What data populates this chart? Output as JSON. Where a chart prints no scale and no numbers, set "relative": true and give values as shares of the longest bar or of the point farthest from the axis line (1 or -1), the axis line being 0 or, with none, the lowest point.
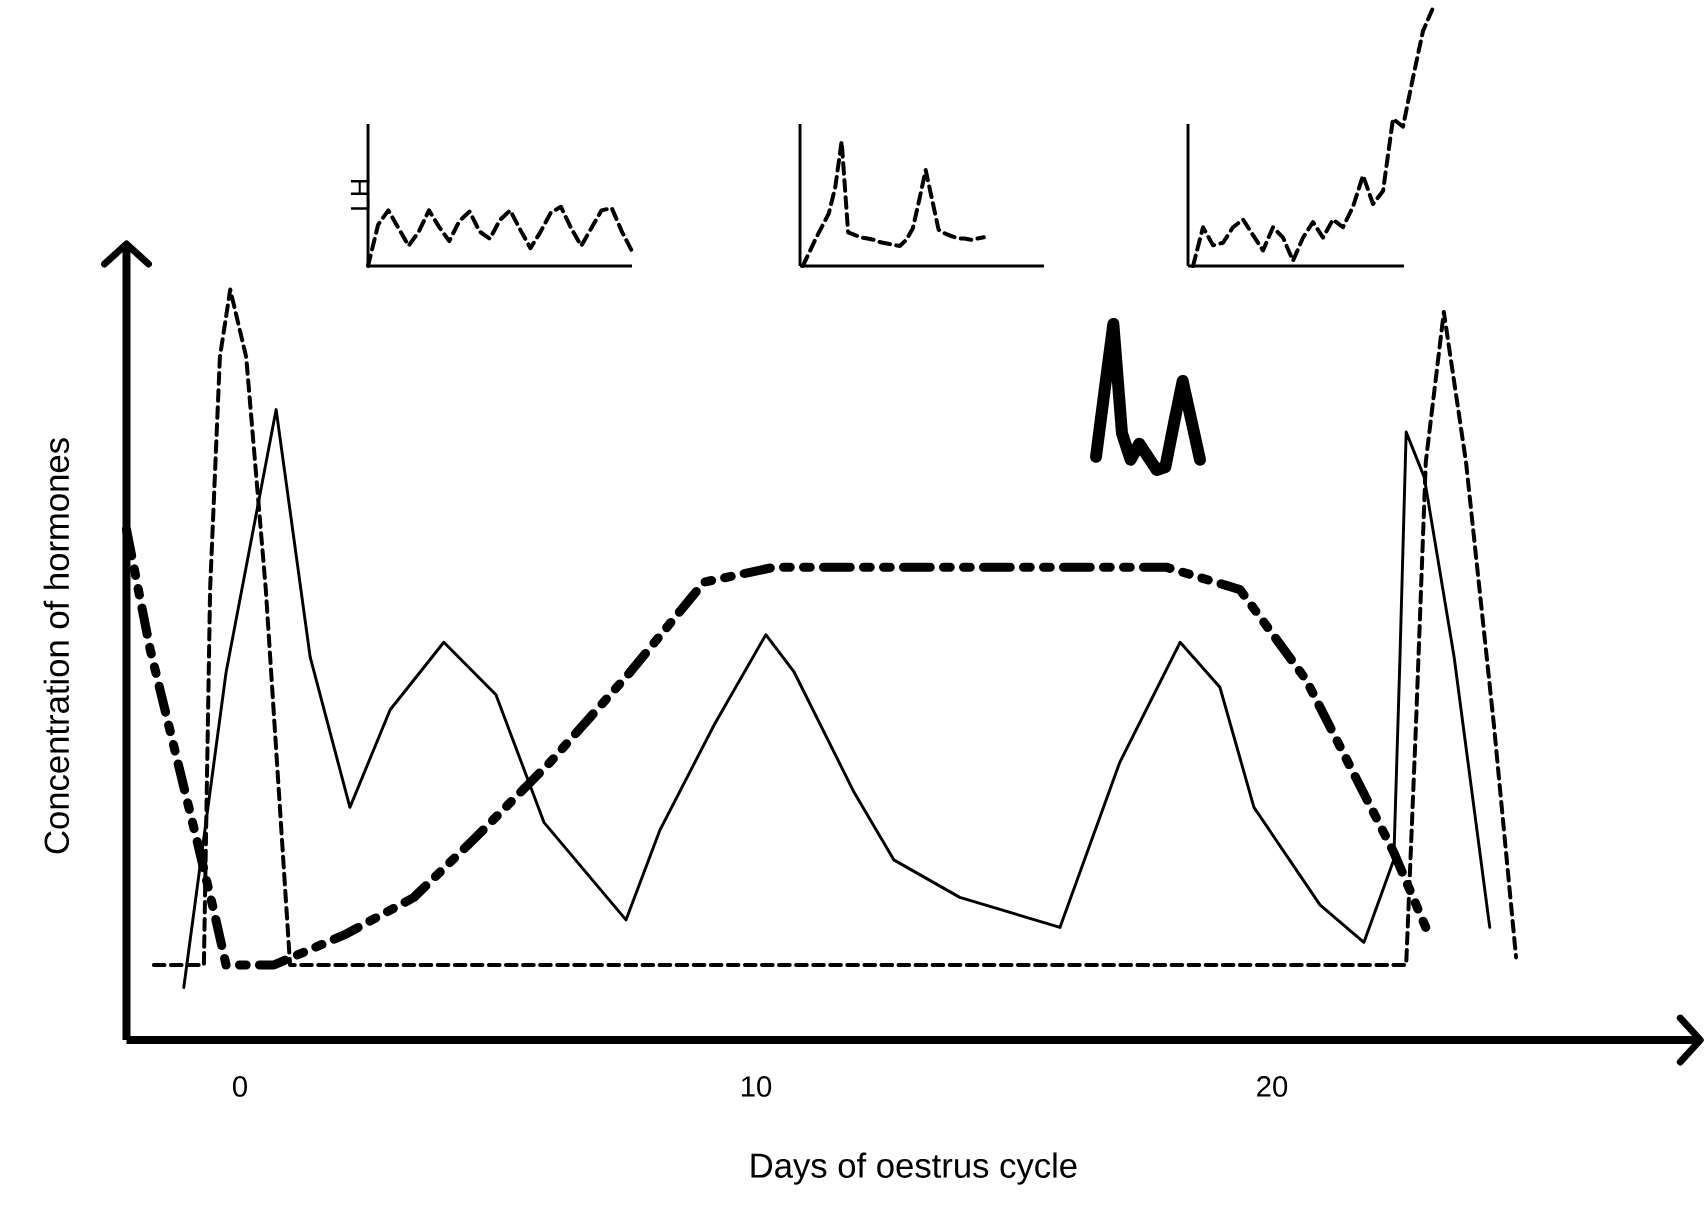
{
  "chart_data": [
    {
      "type": "line",
      "ylabel": "LH",
      "categories": [
        null,
        null,
        null,
        null,
        null,
        null,
        null,
        null,
        null,
        null,
        null,
        null,
        null,
        null,
        null,
        null,
        null,
        null,
        null,
        null,
        null,
        null,
        null,
        null,
        null,
        null,
        null
      ],
      "relative": true,
      "tick_labels": false,
      "series": [
        {
          "color": "#000000",
          "line_style": "dashed",
          "values": [
            0,
            0.7,
            0.94,
            0.64,
            0.34,
            0.58,
            0.94,
            0.66,
            0.42,
            0.76,
            0.92,
            0.58,
            0.46,
            0.78,
            0.94,
            0.61,
            0.3,
            0.58,
            0.9,
            1,
            0.64,
            0.34,
            0.64,
            0.94,
            0.98,
            0.58,
            0.25
          ]
        }
      ]
    },
    {
      "type": "line",
      "categories": [
        null,
        null,
        null,
        null,
        null,
        null,
        null,
        null,
        null,
        null,
        null,
        null,
        null,
        null,
        null,
        null,
        null,
        null,
        null,
        null,
        null,
        null,
        null,
        null,
        null,
        null,
        null,
        null,
        null
      ],
      "relative": true,
      "tick_labels": false,
      "series": [
        {
          "color": "#000000",
          "line_style": "dashed",
          "values": [
            0,
            0.11,
            0.22,
            0.32,
            0.42,
            0.63,
            1,
            0.27,
            0.25,
            0.23,
            0.22,
            0.21,
            0.19,
            0.18,
            0.17,
            0.16,
            0.21,
            0.3,
            0.53,
            0.77,
            0.53,
            0.29,
            0.26,
            0.24,
            0.22,
            0.22,
            0.21,
            0.22,
            0.23
          ]
        }
      ]
    },
    {
      "type": "line",
      "categories": [
        null,
        null,
        null,
        null,
        null,
        null,
        null,
        null,
        null,
        null,
        null,
        null,
        null,
        null,
        null,
        null,
        null,
        null,
        null,
        null,
        null,
        null,
        null,
        null,
        null
      ],
      "relative": true,
      "tick_labels": false,
      "series": [
        {
          "color": "#000000",
          "line_style": "dashed",
          "values": [
            0,
            0.15,
            0.08,
            0.09,
            0.15,
            0.18,
            0.12,
            0.06,
            0.15,
            0.11,
            0.02,
            0.11,
            0.17,
            0.11,
            0.18,
            0.15,
            0.23,
            0.35,
            0.24,
            0.29,
            0.57,
            0.54,
            0.73,
            0.91,
            1
          ]
        }
      ]
    },
    {
      "type": "line",
      "categories": [
        null,
        null,
        null,
        null,
        null,
        null,
        null,
        null,
        null,
        null,
        null,
        null,
        null
      ],
      "relative": true,
      "tick_labels": false,
      "series": [
        {
          "color": "#000000",
          "line_style": "solid",
          "values": [
            0.09,
            0.55,
            1,
            0.25,
            0.07,
            0.18,
            0.09,
            0,
            0.02,
            0.32,
            0.61,
            0.34,
            0.07
          ]
        }
      ]
    },
    {
      "type": "line",
      "xlabel": "Days of oestrus cycle",
      "ylabel": "Concentration of hormones",
      "xlim": [
        -2.2,
        28.3
      ],
      "xticks": [
        0,
        10,
        20
      ],
      "relative": true,
      "tick_labels": "x",
      "series": [
        {
          "color": "#000000",
          "line_style": "dashed",
          "x": [
            -1.67,
            -0.7,
            -0.58,
            -0.39,
            -0.19,
            0.12,
            0.5,
            0.97,
            22.6,
            22.79,
            22.98,
            23.33,
            23.76,
            24.3,
            24.73
          ],
          "values": [
            0.1,
            0.1,
            0.6,
            0.91,
            1,
            0.91,
            0.6,
            0.1,
            0.1,
            0.42,
            0.77,
            0.97,
            0.77,
            0.42,
            0.11
          ]
        },
        {
          "color": "#000000",
          "line_style": "solid",
          "x": [
            -1.09,
            -0.27,
            0.7,
            1.36,
            2.13,
            2.91,
            3.95,
            4.96,
            5.89,
            7.48,
            8.14,
            9.19,
            10.19,
            10.74,
            11.9,
            12.67,
            13.95,
            15.89,
            17.05,
            18.22,
            18.99,
            19.65,
            20.93,
            21.78,
            22.36,
            22.48,
            22.6,
            22.95,
            23.53,
            24.22
          ],
          "values": [
            0.07,
            0.49,
            0.84,
            0.51,
            0.31,
            0.44,
            0.53,
            0.46,
            0.29,
            0.16,
            0.28,
            0.42,
            0.54,
            0.49,
            0.33,
            0.24,
            0.19,
            0.15,
            0.37,
            0.53,
            0.47,
            0.31,
            0.18,
            0.13,
            0.24,
            0.51,
            0.81,
            0.75,
            0.51,
            0.15
          ]
        },
        {
          "color": "#000000",
          "line_style": "dashdotted",
          "x": [
            -2.2,
            -1.74,
            -0.85,
            -0.5,
            -0.27,
            0.66,
            2.02,
            3.37,
            4.57,
            6.01,
            7.56,
            8.99,
            10.35,
            17.95,
            19.38,
            20.66,
            22.36,
            22.98
          ],
          "values": [
            0.68,
            0.52,
            0.27,
            0.17,
            0.1,
            0.1,
            0.14,
            0.19,
            0.27,
            0.37,
            0.49,
            0.61,
            0.63,
            0.63,
            0.6,
            0.48,
            0.25,
            0.15
          ]
        }
      ]
    }
  ]
}
